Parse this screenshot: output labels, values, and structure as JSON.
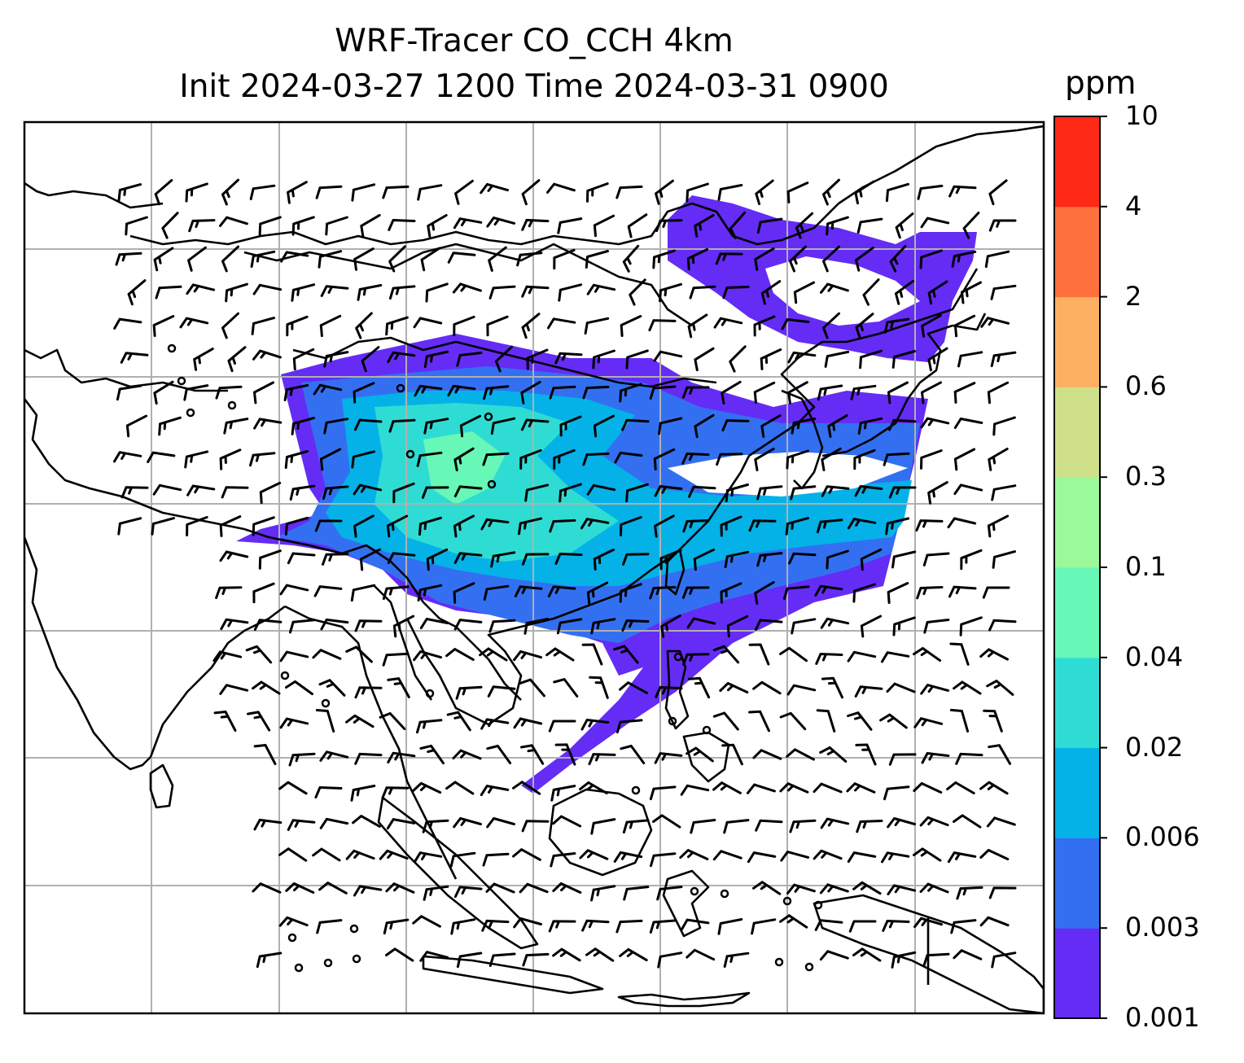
{
  "title": {
    "line1": "WRF-Tracer CO_CCH 4km",
    "line2": "Init 2024-03-27 1200 Time 2024-03-31 0900"
  },
  "colorbar": {
    "unit": "ppm",
    "levels": [
      "0.001",
      "0.003",
      "0.006",
      "0.02",
      "0.04",
      "0.1",
      "0.3",
      "0.6",
      "2",
      "4",
      "10"
    ],
    "colors": [
      "#652cf6",
      "#3370f1",
      "#04b2e8",
      "#2fdcd4",
      "#67f8b8",
      "#9bf99a",
      "#cfe08a",
      "#feb062",
      "#fe703c",
      "#fe2a17"
    ]
  },
  "map": {
    "gridline_color": "#b0b0b0",
    "coastline_color": "#000000",
    "features": [
      "coastlines",
      "country-borders",
      "wind-barbs",
      "calm-wind-circles",
      "tracer-concentration-plume"
    ]
  }
}
